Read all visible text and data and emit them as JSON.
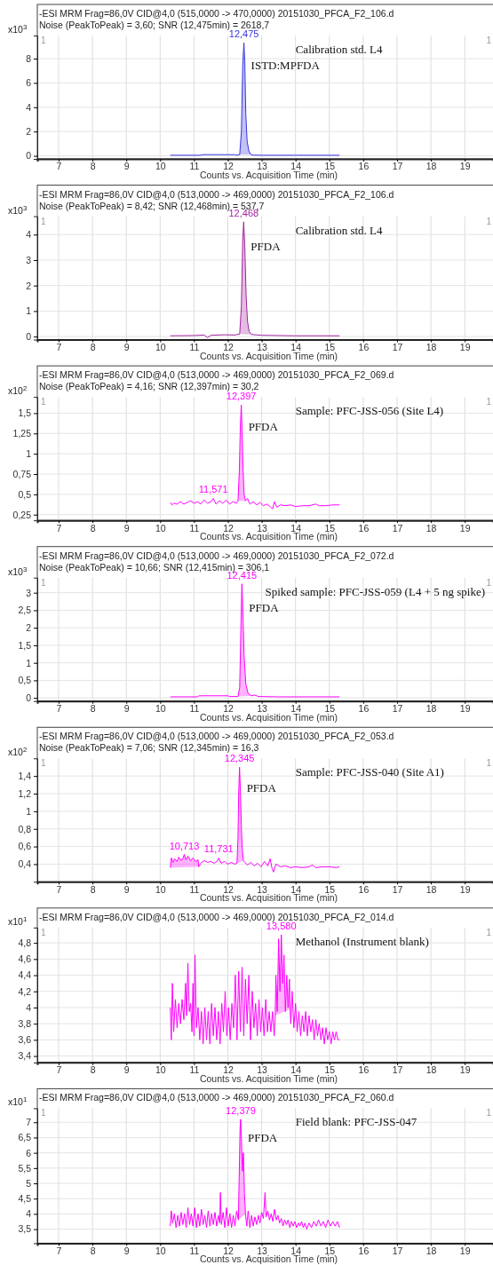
{
  "chart_data": [
    {
      "type": "line",
      "title": "-ESI MRM Frag=86,0V CID@4,0 (515,0000 -> 470,0000) 20151030_PFCA_F2_106.d",
      "subtitle": "Noise (PeakToPeak) = 3,60; SNR (12,475min) = 2618,7",
      "xlabel": "Counts vs. Acquisition Time (min)",
      "ylabel": "x10$^{3}$",
      "xlim": [
        6.37,
        19.84
      ],
      "ylim": [
        -0.25,
        9.9
      ],
      "xticks": [
        7,
        8,
        9,
        10,
        11,
        12,
        13,
        14,
        15,
        16,
        17,
        18,
        19
      ],
      "yticks": [
        0,
        2,
        4,
        6,
        8
      ],
      "grid": true,
      "annotations": [
        "1",
        "1",
        "Calibration std. L4",
        "ISTD:MPFDA",
        {
          "text": "12,475",
          "x": 12.475,
          "y": 9.3
        }
      ],
      "series": [
        {
          "type": "line",
          "color": "#3535e0",
          "x": [
            10.3,
            10.8,
            11.2,
            11.25,
            11.7,
            12.2,
            12.25,
            12.35,
            12.4,
            12.44,
            12.475,
            12.5,
            12.53,
            12.57,
            12.62,
            12.68,
            12.75,
            13,
            14,
            15.3
          ],
          "values": [
            0.05,
            0.05,
            0.05,
            0.1,
            0.1,
            0.1,
            0.05,
            0.1,
            2.0,
            7.5,
            9.3,
            7.8,
            3.5,
            1.2,
            0.4,
            0.1,
            0.06,
            0.05,
            0.05,
            0.05
          ]
        },
        {
          "type": "area",
          "color": "#3535e0",
          "x": [
            12.35,
            12.4,
            12.44,
            12.475,
            12.5,
            12.53,
            12.57,
            12.62,
            12.68
          ],
          "values": [
            0.1,
            2.0,
            7.5,
            9.3,
            7.8,
            3.5,
            1.2,
            0.4,
            0.1
          ]
        }
      ]
    },
    {
      "type": "line",
      "title": "-ESI MRM Frag=86,0V CID@4,0 (513,0000 -> 469,0000) 20151030_PFCA_F2_106.d",
      "subtitle": "Noise (PeakToPeak) = 8,42; SNR (12,468min) = 537,7",
      "xlabel": "Counts vs. Acquisition Time (min)",
      "ylabel": "x10$^{3}$",
      "xlim": [
        6.37,
        19.84
      ],
      "ylim": [
        -0.12,
        4.72
      ],
      "xticks": [
        7,
        8,
        9,
        10,
        11,
        12,
        13,
        14,
        15,
        16,
        17,
        18,
        19
      ],
      "yticks": [
        0,
        1,
        2,
        3,
        4
      ],
      "grid": true,
      "annotations": [
        "1",
        "1",
        "Calibration std. L4",
        "PFDA",
        {
          "text": "12,468",
          "x": 12.468,
          "y": 4.5
        }
      ],
      "series": [
        {
          "type": "line",
          "color": "#a2239e",
          "x": [
            10.3,
            11.0,
            11.3,
            11.4,
            11.5,
            11.9,
            12.2,
            12.35,
            12.4,
            12.44,
            12.468,
            12.5,
            12.54,
            12.58,
            12.63,
            12.7,
            13,
            14,
            15.3
          ],
          "values": [
            0.03,
            0.04,
            0.06,
            -0.04,
            0.05,
            0.07,
            0.06,
            0.1,
            1.2,
            3.8,
            4.5,
            3.6,
            1.6,
            0.6,
            0.2,
            0.08,
            0.05,
            0.03,
            0.03
          ]
        },
        {
          "type": "area",
          "color": "#a2239e",
          "x": [
            12.35,
            12.4,
            12.44,
            12.468,
            12.5,
            12.54,
            12.58,
            12.63,
            12.7
          ],
          "values": [
            0.1,
            1.2,
            3.8,
            4.5,
            3.6,
            1.6,
            0.6,
            0.2,
            0.08
          ]
        }
      ]
    },
    {
      "type": "line",
      "title": "-ESI MRM Frag=86,0V CID@4,0 (513,0000 -> 469,0000) 20151030_PFCA_F2_069.d",
      "subtitle": "Noise (PeakToPeak) = 4,16; SNR (12,397min) = 30,2",
      "xlabel": "Counts vs. Acquisition Time (min)",
      "ylabel": "x10$^{2}$",
      "xlim": [
        6.37,
        19.84
      ],
      "ylim": [
        0.18,
        1.7
      ],
      "xticks": [
        7,
        8,
        9,
        10,
        11,
        12,
        13,
        14,
        15,
        16,
        17,
        18,
        19
      ],
      "yticks": [
        {
          "value": 0.25,
          "label": "0,25"
        },
        {
          "value": 0.5,
          "label": "0,5"
        },
        {
          "value": 0.75,
          "label": "0,75"
        },
        {
          "value": 1,
          "label": "1"
        },
        {
          "value": 1.25,
          "label": "1,25"
        },
        {
          "value": 1.5,
          "label": "1,5"
        }
      ],
      "grid": true,
      "annotations": [
        "1",
        "1",
        "Sample: PFC-JSS-056 (Site L4)",
        "PFDA",
        {
          "text": "12,397",
          "x": 12.397,
          "y": 1.6
        },
        {
          "text": "11,571",
          "x": 11.571,
          "y": 0.45
        }
      ],
      "series": [
        {
          "type": "line",
          "color": "#ff00ff",
          "x": [
            10.3,
            10.35,
            10.4,
            10.5,
            10.6,
            10.7,
            10.8,
            10.9,
            11.0,
            11.1,
            11.2,
            11.3,
            11.4,
            11.5,
            11.571,
            11.65,
            11.75,
            11.85,
            11.95,
            12.05,
            12.15,
            12.25,
            12.3,
            12.34,
            12.37,
            12.397,
            12.42,
            12.45,
            12.48,
            12.52,
            12.58,
            12.65,
            12.75,
            12.85,
            12.95,
            13.05,
            13.15,
            13.25,
            13.32,
            13.38,
            13.45,
            13.55,
            13.7,
            13.85,
            14.0,
            14.2,
            14.4,
            14.6,
            14.7,
            14.9,
            15.1,
            15.3
          ],
          "values": [
            0.4,
            0.37,
            0.39,
            0.38,
            0.41,
            0.38,
            0.4,
            0.42,
            0.39,
            0.41,
            0.38,
            0.43,
            0.39,
            0.41,
            0.45,
            0.38,
            0.42,
            0.39,
            0.43,
            0.38,
            0.41,
            0.39,
            0.42,
            0.8,
            1.35,
            1.6,
            1.3,
            0.8,
            0.5,
            0.42,
            0.45,
            0.38,
            0.41,
            0.37,
            0.4,
            0.36,
            0.38,
            0.35,
            0.32,
            0.41,
            0.34,
            0.37,
            0.36,
            0.37,
            0.35,
            0.36,
            0.36,
            0.38,
            0.36,
            0.36,
            0.37,
            0.37
          ]
        },
        {
          "type": "area",
          "color": "#ff00ff",
          "x": [
            12.3,
            12.34,
            12.37,
            12.397,
            12.42,
            12.45,
            12.48,
            12.52
          ],
          "values": [
            0.42,
            0.8,
            1.35,
            1.6,
            1.3,
            0.8,
            0.5,
            0.42
          ]
        }
      ]
    },
    {
      "type": "line",
      "title": "-ESI MRM Frag=86,0V CID@4,0 (513,0000 -> 469,0000) 20151030_PFCA_F2_072.d",
      "subtitle": "Noise (PeakToPeak) = 10,66; SNR (12,415min) = 306,1",
      "xlabel": "Counts vs. Acquisition Time (min)",
      "ylabel": "x10$^{3}$",
      "xlim": [
        6.37,
        19.84
      ],
      "ylim": [
        -0.09,
        3.43
      ],
      "xticks": [
        7,
        8,
        9,
        10,
        11,
        12,
        13,
        14,
        15,
        16,
        17,
        18,
        19
      ],
      "yticks": [
        0,
        {
          "value": 0.5,
          "label": "0,5"
        },
        1,
        {
          "value": 1.5,
          "label": "1,5"
        },
        2,
        {
          "value": 2.5,
          "label": "2,5"
        },
        3
      ],
      "grid": true,
      "annotations": [
        "1",
        "1",
        "Spiked sample: PFC-JSS-059 (L4 + 5 ng spike)",
        "PFDA",
        {
          "text": "12,415",
          "x": 12.415,
          "y": 3.25
        }
      ],
      "series": [
        {
          "type": "line",
          "color": "#ff00ff",
          "x": [
            10.3,
            11.1,
            11.15,
            12.0,
            12.05,
            12.3,
            12.35,
            12.39,
            12.415,
            12.44,
            12.48,
            12.53,
            12.6,
            12.7,
            12.8,
            12.9,
            13.5,
            15.3
          ],
          "values": [
            0.03,
            0.03,
            0.06,
            0.06,
            0.04,
            0.04,
            0.3,
            2.2,
            3.25,
            2.6,
            1.2,
            0.4,
            0.12,
            0.06,
            0.08,
            0.04,
            0.03,
            0.03
          ]
        },
        {
          "type": "area",
          "color": "#ff00ff",
          "x": [
            12.3,
            12.35,
            12.39,
            12.415,
            12.44,
            12.48,
            12.53,
            12.6,
            12.7
          ],
          "values": [
            0.04,
            0.3,
            2.2,
            3.25,
            2.6,
            1.2,
            0.4,
            0.12,
            0.06
          ]
        }
      ]
    },
    {
      "type": "line",
      "title": "-ESI MRM Frag=86,0V CID@4,0 (513,0000 -> 469,0000) 20151030_PFCA_F2_053.d",
      "subtitle": "Noise (PeakToPeak) = 7,06; SNR (12,345min) = 16,3",
      "xlabel": "Counts vs. Acquisition Time (min)",
      "ylabel": "x10$^{2}$",
      "xlim": [
        6.37,
        19.84
      ],
      "ylim": [
        0.2,
        1.6
      ],
      "xticks": [
        7,
        8,
        9,
        10,
        11,
        12,
        13,
        14,
        15,
        16,
        17,
        18,
        19
      ],
      "yticks": [
        {
          "value": 0.4,
          "label": "0,4"
        },
        {
          "value": 0.6,
          "label": "0,6"
        },
        {
          "value": 0.8,
          "label": "0,8"
        },
        1,
        {
          "value": 1.2,
          "label": "1,2"
        },
        {
          "value": 1.4,
          "label": "1,4"
        }
      ],
      "grid": true,
      "annotations": [
        "1",
        "1",
        "Sample: PFC-JSS-040 (Site A1)",
        "PFDA",
        {
          "text": "12,345",
          "x": 12.345,
          "y": 1.5
        },
        {
          "text": "10,713",
          "x": 10.713,
          "y": 0.51
        },
        {
          "text": "11,731",
          "x": 11.731,
          "y": 0.47
        }
      ],
      "series": [
        {
          "type": "line",
          "color": "#ff00ff",
          "x": [
            10.3,
            10.33,
            10.38,
            10.43,
            10.5,
            10.55,
            10.62,
            10.68,
            10.713,
            10.76,
            10.82,
            10.9,
            10.97,
            11.05,
            11.12,
            11.14,
            11.2,
            11.3,
            11.4,
            11.5,
            11.6,
            11.7,
            11.731,
            11.8,
            11.9,
            12.0,
            12.1,
            12.2,
            12.27,
            12.3,
            12.32,
            12.345,
            12.37,
            12.4,
            12.43,
            12.46,
            12.5,
            12.58,
            12.68,
            12.78,
            12.88,
            12.98,
            13.08,
            13.18,
            13.25,
            13.3,
            13.35,
            13.42,
            13.55,
            13.7,
            13.85,
            14.0,
            14.2,
            14.4,
            14.5,
            14.6,
            14.8,
            15.0,
            15.2,
            15.3
          ],
          "values": [
            0.36,
            0.47,
            0.42,
            0.46,
            0.43,
            0.48,
            0.44,
            0.47,
            0.51,
            0.45,
            0.49,
            0.44,
            0.47,
            0.43,
            0.45,
            0.37,
            0.41,
            0.44,
            0.42,
            0.43,
            0.41,
            0.44,
            0.47,
            0.41,
            0.43,
            0.4,
            0.42,
            0.4,
            0.41,
            0.7,
            1.2,
            1.5,
            1.25,
            0.8,
            0.55,
            0.44,
            0.42,
            0.39,
            0.42,
            0.38,
            0.41,
            0.37,
            0.43,
            0.38,
            0.46,
            0.36,
            0.31,
            0.4,
            0.37,
            0.38,
            0.36,
            0.37,
            0.36,
            0.37,
            0.39,
            0.36,
            0.37,
            0.37,
            0.36,
            0.37
          ]
        },
        {
          "type": "area",
          "color": "#ff00ff",
          "x": [
            10.3,
            10.33,
            10.38,
            10.43,
            10.5,
            10.55,
            10.62,
            10.68,
            10.713,
            10.76,
            10.82,
            10.9,
            10.97,
            11.05,
            11.12,
            11.14
          ],
          "values": [
            0.36,
            0.47,
            0.42,
            0.46,
            0.43,
            0.48,
            0.44,
            0.47,
            0.51,
            0.45,
            0.49,
            0.44,
            0.47,
            0.43,
            0.45,
            0.37
          ]
        },
        {
          "type": "area",
          "color": "#ff00ff",
          "x": [
            12.27,
            12.3,
            12.32,
            12.345,
            12.37,
            12.4,
            12.43,
            12.46
          ],
          "values": [
            0.41,
            0.7,
            1.2,
            1.5,
            1.25,
            0.8,
            0.55,
            0.44
          ]
        }
      ]
    },
    {
      "type": "line",
      "title": "-ESI MRM Frag=86,0V CID@4,0 (513,0000 -> 469,0000) 20151030_PFCA_F2_014.d",
      "xlabel": "Counts vs. Acquisition Time (min)",
      "ylabel": "x10$^{1}$",
      "xlim": [
        6.37,
        19.84
      ],
      "ylim": [
        3.32,
        4.99
      ],
      "xticks": [
        7,
        8,
        9,
        10,
        11,
        12,
        13,
        14,
        15,
        16,
        17,
        18,
        19
      ],
      "yticks": [
        {
          "value": 3.4,
          "label": "3,4"
        },
        {
          "value": 3.6,
          "label": "3,6"
        },
        {
          "value": 3.8,
          "label": "3,8"
        },
        4,
        {
          "value": 4.2,
          "label": "4,2"
        },
        {
          "value": 4.4,
          "label": "4,4"
        },
        {
          "value": 4.6,
          "label": "4,6"
        },
        {
          "value": 4.8,
          "label": "4,8"
        }
      ],
      "grid": true,
      "annotations": [
        "1",
        "1",
        "Methanol (Instrument blank)",
        {
          "text": "13,580",
          "x": 13.58,
          "y": 4.9
        }
      ],
      "series": [
        {
          "type": "line",
          "color": "#ff00ff",
          "x": [
            10.3,
            10.33,
            10.36,
            10.4,
            10.45,
            10.5,
            10.55,
            10.6,
            10.65,
            10.7,
            10.75,
            10.78,
            10.82,
            10.86,
            10.9,
            10.94,
            10.97,
            11.0,
            11.03,
            11.07,
            11.12,
            11.17,
            11.22,
            11.27,
            11.32,
            11.37,
            11.42,
            11.47,
            11.52,
            11.57,
            11.62,
            11.67,
            11.72,
            11.77,
            11.82,
            11.87,
            11.92,
            11.97,
            12.02,
            12.07,
            12.12,
            12.17,
            12.22,
            12.27,
            12.32,
            12.37,
            12.42,
            12.47,
            12.52,
            12.57,
            12.62,
            12.67,
            12.72,
            12.77,
            12.82,
            12.87,
            12.92,
            12.97,
            13.02,
            13.07,
            13.12,
            13.17,
            13.22,
            13.27,
            13.32,
            13.37,
            13.4,
            13.42,
            13.46,
            13.5,
            13.54,
            13.58,
            13.62,
            13.66,
            13.7,
            13.74,
            13.78,
            13.82,
            13.84,
            13.86,
            13.9,
            13.95,
            14.0,
            14.05,
            14.1,
            14.15,
            14.2,
            14.25,
            14.3,
            14.35,
            14.4,
            14.45,
            14.5,
            14.55,
            14.6,
            14.65,
            14.7,
            14.75,
            14.8,
            14.85,
            14.9,
            14.95,
            15.0,
            15.05,
            15.1,
            15.15,
            15.2,
            15.25,
            15.3
          ],
          "values": [
            4.0,
            3.6,
            4.3,
            3.7,
            4.1,
            3.75,
            4.05,
            3.8,
            4.1,
            3.85,
            4.3,
            3.9,
            4.55,
            3.95,
            4.05,
            3.7,
            4.3,
            3.65,
            4.65,
            3.75,
            4.0,
            3.6,
            3.95,
            3.55,
            4.0,
            3.6,
            3.95,
            3.55,
            4.05,
            3.65,
            4.0,
            3.6,
            3.95,
            3.55,
            4.05,
            3.7,
            4.2,
            3.65,
            4.0,
            3.6,
            4.05,
            3.75,
            4.4,
            3.6,
            4.45,
            3.7,
            4.5,
            3.65,
            4.35,
            3.8,
            4.4,
            3.6,
            4.2,
            3.75,
            4.05,
            3.65,
            4.1,
            3.7,
            4.0,
            3.65,
            4.1,
            3.7,
            3.95,
            3.7,
            3.95,
            3.65,
            3.9,
            4.4,
            3.95,
            4.85,
            4.2,
            4.9,
            4.3,
            4.65,
            3.95,
            4.4,
            4.0,
            4.35,
            3.98,
            3.8,
            4.2,
            3.75,
            4.05,
            3.7,
            3.95,
            3.65,
            3.9,
            3.7,
            3.95,
            3.65,
            3.9,
            3.7,
            3.85,
            3.6,
            3.85,
            3.65,
            3.8,
            3.6,
            3.75,
            3.55,
            3.75,
            3.6,
            3.7,
            3.55,
            3.7,
            3.6,
            3.7,
            3.6,
            3.6
          ]
        },
        {
          "type": "area",
          "color": "#ff00ff",
          "x": [
            13.4,
            13.42,
            13.46,
            13.5,
            13.54,
            13.58,
            13.62,
            13.66,
            13.7,
            13.74,
            13.78,
            13.82,
            13.84
          ],
          "values": [
            3.9,
            4.4,
            3.95,
            4.85,
            4.2,
            4.9,
            4.3,
            4.65,
            3.95,
            4.4,
            4.0,
            4.35,
            3.98
          ]
        }
      ]
    },
    {
      "type": "line",
      "title": "-ESI MRM Frag=86,0V CID@4,0 (513,0000 -> 469,0000) 20151030_PFCA_F2_060.d",
      "xlabel": "Counts vs. Acquisition Time (min)",
      "ylabel": "x10$^{1}$",
      "xlim": [
        6.37,
        19.84
      ],
      "ylim": [
        3.04,
        7.46
      ],
      "xticks": [
        7,
        8,
        9,
        10,
        11,
        12,
        13,
        14,
        15,
        16,
        17,
        18,
        19
      ],
      "yticks": [
        {
          "value": 3.5,
          "label": "3,5"
        },
        4,
        {
          "value": 4.5,
          "label": "4,5"
        },
        5,
        {
          "value": 5.5,
          "label": "5,5"
        },
        6,
        {
          "value": 6.5,
          "label": "6,5"
        },
        7
      ],
      "grid": true,
      "annotations": [
        "1",
        "1",
        "Field blank: PFC-JSS-047",
        "PFDA",
        {
          "text": "12,379",
          "x": 12.379,
          "y": 7.1
        }
      ],
      "series": [
        {
          "type": "line",
          "color": "#ff00ff",
          "x": [
            10.3,
            10.33,
            10.37,
            10.42,
            10.47,
            10.52,
            10.57,
            10.62,
            10.67,
            10.72,
            10.77,
            10.82,
            10.87,
            10.92,
            10.97,
            11.02,
            11.07,
            11.12,
            11.17,
            11.22,
            11.27,
            11.32,
            11.37,
            11.42,
            11.47,
            11.52,
            11.57,
            11.62,
            11.67,
            11.72,
            11.76,
            11.78,
            11.81,
            11.86,
            11.91,
            11.96,
            12.01,
            12.06,
            12.11,
            12.16,
            12.21,
            12.26,
            12.31,
            12.34,
            12.36,
            12.379,
            12.4,
            12.43,
            12.46,
            12.49,
            12.52,
            12.56,
            12.6,
            12.65,
            12.7,
            12.75,
            12.8,
            12.85,
            12.9,
            12.95,
            13.0,
            13.05,
            13.1,
            13.13,
            13.18,
            13.23,
            13.28,
            13.33,
            13.38,
            13.43,
            13.48,
            13.53,
            13.58,
            13.63,
            13.68,
            13.73,
            13.78,
            13.83,
            13.88,
            13.93,
            13.98,
            14.03,
            14.08,
            14.13,
            14.18,
            14.23,
            14.28,
            14.33,
            14.4,
            14.47,
            14.54,
            14.61,
            14.68,
            14.75,
            14.82,
            14.89,
            14.96,
            15.03,
            15.1,
            15.17,
            15.24,
            15.3
          ],
          "values": [
            3.6,
            4.1,
            3.7,
            4.0,
            3.55,
            3.95,
            3.6,
            4.05,
            3.65,
            4.0,
            3.55,
            4.2,
            3.65,
            4.0,
            3.6,
            4.2,
            3.55,
            4.0,
            3.6,
            4.15,
            3.65,
            3.95,
            3.55,
            4.1,
            3.6,
            4.0,
            3.65,
            4.05,
            3.6,
            3.95,
            3.7,
            4.7,
            3.65,
            4.05,
            3.55,
            4.2,
            3.6,
            4.0,
            3.55,
            3.95,
            3.6,
            4.1,
            3.8,
            5.5,
            6.8,
            7.1,
            6.5,
            5.4,
            6.0,
            4.7,
            4.0,
            3.6,
            4.1,
            3.55,
            3.95,
            3.6,
            3.9,
            3.65,
            3.95,
            3.7,
            4.05,
            3.85,
            4.7,
            3.9,
            4.1,
            3.8,
            4.0,
            3.75,
            4.15,
            3.8,
            3.95,
            3.7,
            3.85,
            3.6,
            3.8,
            3.65,
            3.8,
            3.55,
            3.75,
            3.6,
            3.75,
            3.55,
            3.7,
            3.6,
            3.75,
            3.55,
            3.7,
            3.5,
            3.7,
            3.55,
            3.75,
            3.6,
            3.8,
            3.6,
            3.75,
            3.55,
            3.8,
            3.6,
            3.75,
            3.6,
            3.75,
            3.55
          ]
        },
        {
          "type": "area",
          "color": "#ff00ff",
          "x": [
            12.31,
            12.34,
            12.36,
            12.379,
            12.4,
            12.43,
            12.46,
            12.49,
            12.52
          ],
          "values": [
            3.8,
            5.5,
            6.8,
            7.1,
            6.5,
            5.4,
            6.0,
            4.7,
            4.0
          ]
        }
      ]
    }
  ]
}
